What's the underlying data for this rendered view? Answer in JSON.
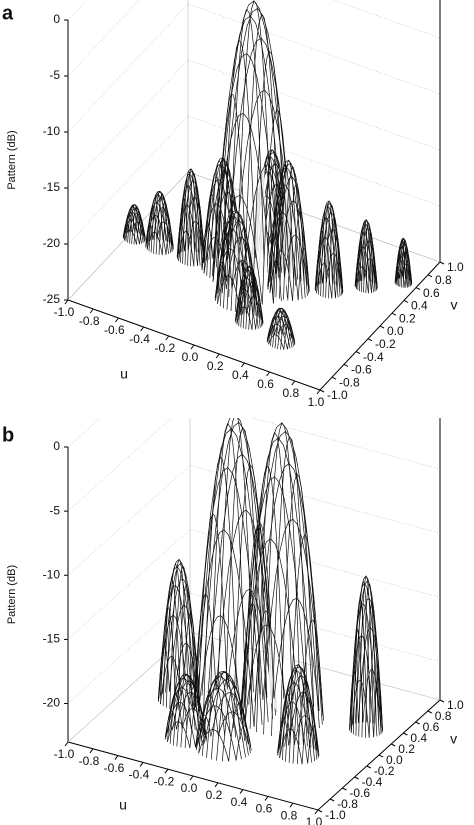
{
  "chart_data": [
    {
      "type": "surface",
      "panel": "a",
      "zlabel": "Pattern (dB)",
      "xlabel": "u",
      "ylabel": "v",
      "xlim": [
        -1,
        1
      ],
      "ylim": [
        -1,
        1
      ],
      "zlim": [
        -25,
        0
      ],
      "xticks": [
        {
          "value": -1,
          "label": "-1.0"
        },
        {
          "value": -0.8,
          "label": "-0.8"
        },
        {
          "value": -0.6,
          "label": "-0.6"
        },
        {
          "value": -0.4,
          "label": "-0.4"
        },
        {
          "value": -0.2,
          "label": "-0.2"
        },
        {
          "value": 0,
          "label": "0.0"
        },
        {
          "value": 0.2,
          "label": "0.2"
        },
        {
          "value": 0.4,
          "label": "0.4"
        },
        {
          "value": 0.6,
          "label": "0.6"
        },
        {
          "value": 0.8,
          "label": "0.8"
        },
        {
          "value": 1,
          "label": "1.0"
        }
      ],
      "yticks": [
        {
          "value": -1,
          "label": "-1.0"
        },
        {
          "value": -0.8,
          "label": "-0.8"
        },
        {
          "value": -0.6,
          "label": "-0.6"
        },
        {
          "value": -0.4,
          "label": "-0.4"
        },
        {
          "value": -0.2,
          "label": "-0.2"
        },
        {
          "value": 0,
          "label": "0.0"
        },
        {
          "value": 0.2,
          "label": "0.2"
        },
        {
          "value": 0.4,
          "label": "0.4"
        },
        {
          "value": 0.6,
          "label": "0.6"
        },
        {
          "value": 0.8,
          "label": "0.8"
        },
        {
          "value": 1,
          "label": "1.0"
        }
      ],
      "zticks": [
        0,
        -5,
        -10,
        -15,
        -20,
        -25
      ],
      "lobes": [
        {
          "u": 0.9,
          "v": 0.6,
          "peak": -21,
          "width": 0.06
        },
        {
          "u": 0.7,
          "v": 0.4,
          "peak": -19,
          "width": 0.08
        },
        {
          "u": 0.5,
          "v": 0.2,
          "peak": -17,
          "width": 0.1
        },
        {
          "u": 0,
          "v": 0.3,
          "peak": -15,
          "width": 0.15
        },
        {
          "u": -0.95,
          "v": 0,
          "peak": -22,
          "width": 0.08
        },
        {
          "u": -0.75,
          "v": 0,
          "peak": -20,
          "width": 0.1
        },
        {
          "u": -0.5,
          "v": 0,
          "peak": -17,
          "width": 0.1
        },
        {
          "u": -0.25,
          "v": 0,
          "peak": -15,
          "width": 0.15
        },
        {
          "u": 0,
          "v": 0,
          "peak": 0,
          "width": 0.3
        },
        {
          "u": 0.25,
          "v": 0.05,
          "peak": -13.5,
          "width": 0.15
        },
        {
          "u": 0,
          "v": -0.3,
          "peak": -17,
          "width": 0.15
        },
        {
          "u": 0.2,
          "v": -0.5,
          "peak": -20,
          "width": 0.1
        },
        {
          "u": 0.5,
          "v": -0.6,
          "peak": -22,
          "width": 0.1
        }
      ]
    },
    {
      "type": "surface",
      "panel": "b",
      "zlabel": "Pattern (dB)",
      "xlabel": "u",
      "ylabel": "v",
      "xlim": [
        -1,
        1
      ],
      "ylim": [
        -1,
        1
      ],
      "zlim": [
        -23,
        0
      ],
      "xticks": [
        {
          "value": -1,
          "label": "-1.0"
        },
        {
          "value": -0.8,
          "label": "-0.8"
        },
        {
          "value": -0.6,
          "label": "-0.6"
        },
        {
          "value": -0.4,
          "label": "-0.4"
        },
        {
          "value": -0.2,
          "label": "-0.2"
        },
        {
          "value": 0,
          "label": "0.0"
        },
        {
          "value": 0.2,
          "label": "0.2"
        },
        {
          "value": 0.4,
          "label": "0.4"
        },
        {
          "value": 0.6,
          "label": "0.6"
        },
        {
          "value": 0.8,
          "label": "0.8"
        },
        {
          "value": 1,
          "label": "1.0"
        }
      ],
      "yticks": [
        {
          "value": -1,
          "label": "-1.0"
        },
        {
          "value": -0.8,
          "label": "-0.8"
        },
        {
          "value": -0.6,
          "label": "-0.6"
        },
        {
          "value": -0.4,
          "label": "-0.4"
        },
        {
          "value": -0.2,
          "label": "-0.2"
        },
        {
          "value": 0,
          "label": "0.0"
        },
        {
          "value": 0.2,
          "label": "0.2"
        },
        {
          "value": 0.4,
          "label": "0.4"
        },
        {
          "value": 0.6,
          "label": "0.6"
        },
        {
          "value": 0.8,
          "label": "0.8"
        },
        {
          "value": 1,
          "label": "1.0"
        }
      ],
      "zticks": [
        0,
        -5,
        -10,
        -15,
        -20
      ],
      "lobes": [
        {
          "u": 0.75,
          "v": 0.3,
          "peak": -11,
          "width": 0.12
        },
        {
          "u": -0.6,
          "v": 0,
          "peak": -12,
          "width": 0.15
        },
        {
          "u": -0.2,
          "v": 0.1,
          "peak": 0,
          "width": 0.3
        },
        {
          "u": 0.15,
          "v": 0.15,
          "peak": 0,
          "width": 0.3
        },
        {
          "u": 0.5,
          "v": -0.3,
          "peak": -16,
          "width": 0.15
        },
        {
          "u": -0.3,
          "v": -0.5,
          "peak": -18,
          "width": 0.15
        },
        {
          "u": 0,
          "v": -0.5,
          "peak": -17,
          "width": 0.2
        }
      ]
    }
  ]
}
